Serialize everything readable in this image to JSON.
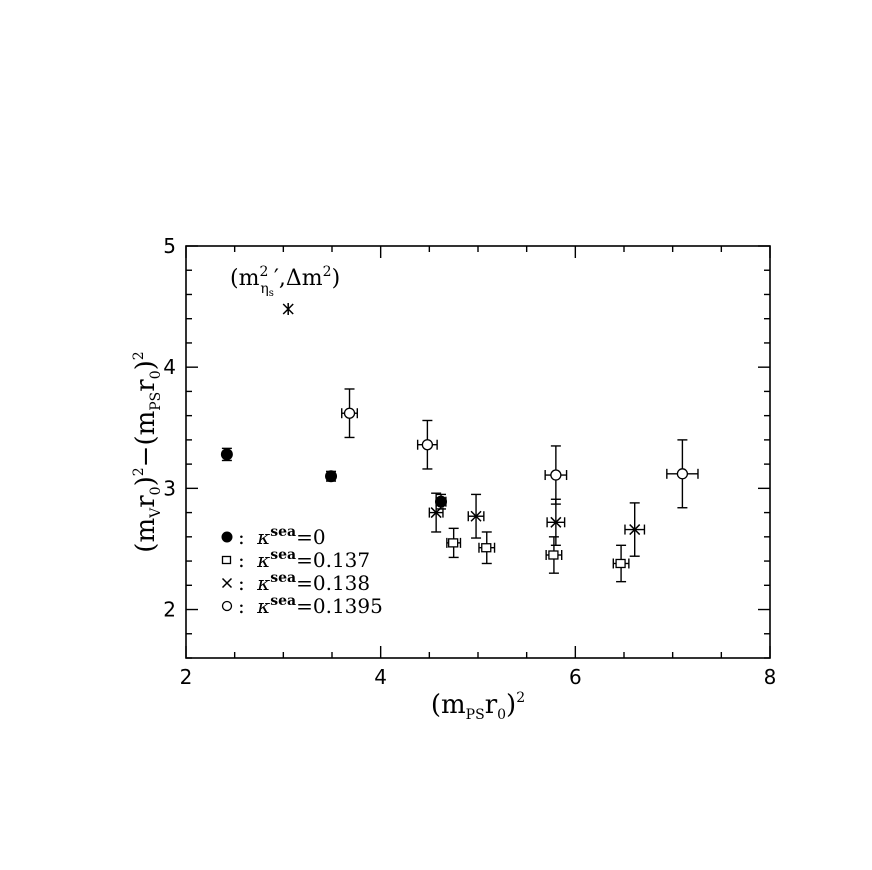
{
  "chart_data": {
    "type": "scatter",
    "xlabel": {
      "main": "(m",
      "sub": "PS",
      "mid": "r",
      "sub2": "0",
      "tail": ")",
      "sup": "2"
    },
    "ylabel": {
      "p1": "(m",
      "s1": "V",
      "p2": "r",
      "s2": "0",
      "p3": ")",
      "e1": "2",
      "p4": "−(m",
      "s3": "PS",
      "p5": "r",
      "s4": "0",
      "p6": ")",
      "e2": "2"
    },
    "xlim": [
      2,
      8
    ],
    "ylim": [
      1.6,
      5
    ],
    "x_ticks": [
      "2",
      "4",
      "6",
      "8"
    ],
    "y_ticks": [
      "2",
      "3",
      "4",
      "5"
    ],
    "legend": [
      {
        "marker": "filled-circle",
        "label": "0"
      },
      {
        "marker": "open-square",
        "label": "0.137"
      },
      {
        "marker": "cross",
        "label": "0.138"
      },
      {
        "marker": "open-circle",
        "label": "0.1395"
      }
    ],
    "legend_prefix": "κ",
    "legend_sup": "sea",
    "legend_sep": ":",
    "legend_eq": "=",
    "annotation": {
      "open": "(m",
      "sup": "2",
      "sub": "η",
      "subsub": "s",
      "mid": "′,Δm",
      "sup2": "2",
      "close": ")",
      "x": 3.05,
      "y": 4.48,
      "marker": "asterisk"
    },
    "series": [
      {
        "name": "κsea=0",
        "marker": "filled-circle",
        "points": [
          {
            "x": 2.42,
            "y": 3.28,
            "xerr": 0.02,
            "yerr": 0.05
          },
          {
            "x": 3.49,
            "y": 3.1,
            "xerr": 0.04,
            "yerr": 0.04
          },
          {
            "x": 4.62,
            "y": 2.89,
            "xerr": 0.05,
            "yerr": 0.06
          }
        ]
      },
      {
        "name": "κsea=0.137",
        "marker": "open-square",
        "points": [
          {
            "x": 4.75,
            "y": 2.55,
            "xerr": 0.07,
            "yerr": 0.12
          },
          {
            "x": 5.09,
            "y": 2.51,
            "xerr": 0.08,
            "yerr": 0.13
          },
          {
            "x": 5.78,
            "y": 2.45,
            "xerr": 0.08,
            "yerr": 0.15
          },
          {
            "x": 6.47,
            "y": 2.38,
            "xerr": 0.08,
            "yerr": 0.15
          }
        ]
      },
      {
        "name": "κsea=0.138",
        "marker": "cross",
        "points": [
          {
            "x": 4.57,
            "y": 2.8,
            "xerr": 0.07,
            "yerr": 0.16
          },
          {
            "x": 4.98,
            "y": 2.77,
            "xerr": 0.08,
            "yerr": 0.18
          },
          {
            "x": 5.8,
            "y": 2.72,
            "xerr": 0.09,
            "yerr": 0.19
          },
          {
            "x": 6.61,
            "y": 2.66,
            "xerr": 0.1,
            "yerr": 0.22
          }
        ]
      },
      {
        "name": "κsea=0.1395",
        "marker": "open-circle",
        "points": [
          {
            "x": 3.68,
            "y": 3.62,
            "xerr": 0.08,
            "yerr": 0.2
          },
          {
            "x": 4.48,
            "y": 3.36,
            "xerr": 0.1,
            "yerr": 0.2
          },
          {
            "x": 5.8,
            "y": 3.11,
            "xerr": 0.11,
            "yerr": 0.24
          },
          {
            "x": 7.1,
            "y": 3.12,
            "xerr": 0.16,
            "yerr": 0.28
          }
        ]
      }
    ],
    "grid": false
  }
}
